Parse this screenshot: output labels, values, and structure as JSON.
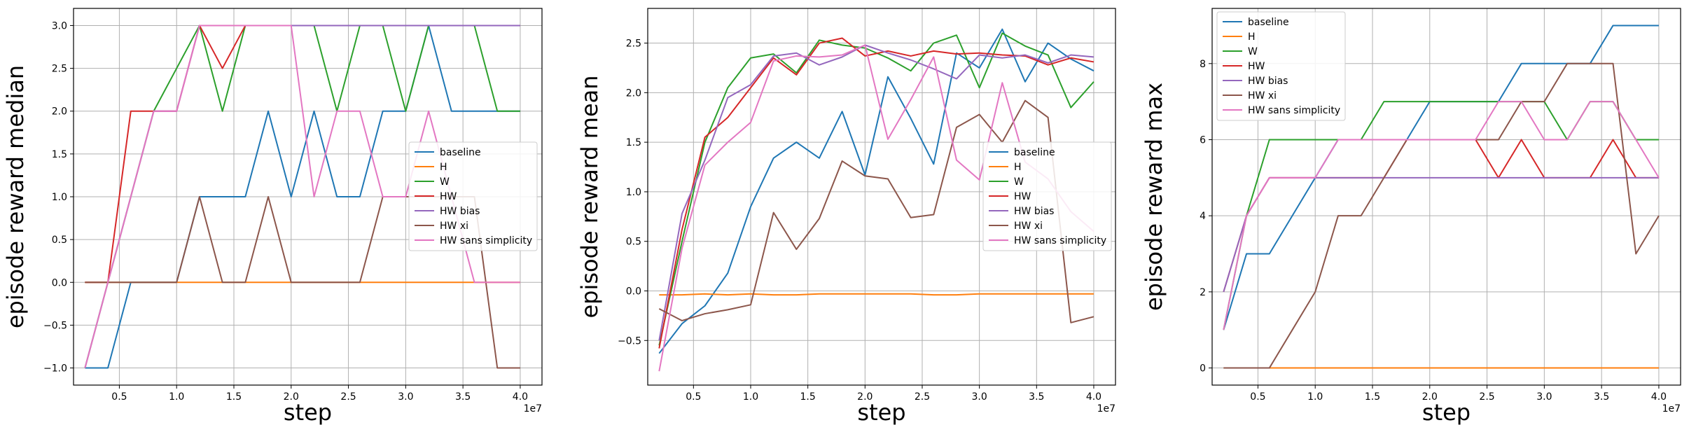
{
  "figure": {
    "background": "#ffffff"
  },
  "chart_data": [
    {
      "type": "line",
      "xlabel": "step",
      "ylabel": "episode reward median",
      "x_offset_text": "1e7",
      "xlim": [
        0.1,
        4.19
      ],
      "ylim": [
        -1.2,
        3.2
      ],
      "xticks": [
        0.5,
        1.0,
        1.5,
        2.0,
        2.5,
        3.0,
        3.5,
        4.0
      ],
      "xtick_labels": [
        "0.5",
        "1.0",
        "1.5",
        "2.0",
        "2.5",
        "3.0",
        "3.5",
        "4.0"
      ],
      "yticks": [
        -1.0,
        -0.5,
        0.0,
        0.5,
        1.0,
        1.5,
        2.0,
        2.5,
        3.0
      ],
      "ytick_labels": [
        "−1.0",
        "−0.5",
        "0.0",
        "0.5",
        "1.0",
        "1.5",
        "2.0",
        "2.5",
        "3.0"
      ],
      "grid": true,
      "legend_position": "center-right",
      "x": [
        0.2,
        0.4,
        0.6,
        0.8,
        1.0,
        1.2,
        1.4,
        1.6,
        1.8,
        2.0,
        2.2,
        2.4,
        2.6,
        2.8,
        3.0,
        3.2,
        3.4,
        3.6,
        3.8,
        4.0
      ],
      "series": [
        {
          "name": "baseline",
          "color": "#1f77b4",
          "values": [
            -1,
            -1,
            0,
            0,
            0,
            1,
            1,
            1,
            2,
            1,
            2,
            1,
            1,
            2,
            2,
            3,
            2,
            2,
            2,
            2
          ]
        },
        {
          "name": "H",
          "color": "#ff7f0e",
          "values": [
            0,
            0,
            0,
            0,
            0,
            0,
            0,
            0,
            0,
            0,
            0,
            0,
            0,
            0,
            0,
            0,
            0,
            0,
            0,
            0
          ]
        },
        {
          "name": "W",
          "color": "#2ca02c",
          "values": [
            -1,
            0,
            1,
            2,
            2.5,
            3,
            2,
            3,
            3,
            3,
            3,
            2,
            3,
            3,
            2,
            3,
            3,
            3,
            2,
            2
          ]
        },
        {
          "name": "HW",
          "color": "#d62728",
          "values": [
            0,
            0,
            2,
            2,
            2,
            3,
            2.5,
            3,
            3,
            3,
            3,
            3,
            3,
            3,
            3,
            3,
            3,
            3,
            3,
            3
          ]
        },
        {
          "name": "HW bias",
          "color": "#9467bd",
          "values": [
            -1,
            0,
            1,
            2,
            2,
            3,
            3,
            3,
            3,
            3,
            3,
            3,
            3,
            3,
            3,
            3,
            3,
            3,
            3,
            3
          ]
        },
        {
          "name": "HW xi",
          "color": "#8c564b",
          "values": [
            0,
            0,
            0,
            0,
            0,
            1,
            0,
            0,
            1,
            0,
            0,
            0,
            0,
            1,
            1,
            1,
            1,
            1,
            -1,
            -1
          ]
        },
        {
          "name": "HW sans simplicity",
          "color": "#e377c2",
          "values": [
            -1,
            0,
            1,
            2,
            2,
            3,
            3,
            3,
            3,
            3,
            1,
            2,
            2,
            1,
            1,
            2,
            1,
            0,
            0,
            0
          ]
        }
      ]
    },
    {
      "type": "line",
      "xlabel": "step",
      "ylabel": "episode reward mean",
      "x_offset_text": "1e7",
      "xlim": [
        0.1,
        4.19
      ],
      "ylim": [
        -0.95,
        2.85
      ],
      "xticks": [
        0.5,
        1.0,
        1.5,
        2.0,
        2.5,
        3.0,
        3.5,
        4.0
      ],
      "xtick_labels": [
        "0.5",
        "1.0",
        "1.5",
        "2.0",
        "2.5",
        "3.0",
        "3.5",
        "4.0"
      ],
      "yticks": [
        -0.5,
        0.0,
        0.5,
        1.0,
        1.5,
        2.0,
        2.5
      ],
      "ytick_labels": [
        "−0.5",
        "0.0",
        "0.5",
        "1.0",
        "1.5",
        "2.0",
        "2.5"
      ],
      "grid": true,
      "legend_position": "center-right",
      "x": [
        0.2,
        0.4,
        0.6,
        0.8,
        1.0,
        1.2,
        1.4,
        1.6,
        1.8,
        2.0,
        2.2,
        2.4,
        2.6,
        2.8,
        3.0,
        3.2,
        3.4,
        3.6,
        3.8,
        4.0
      ],
      "series": [
        {
          "name": "baseline",
          "color": "#1f77b4",
          "values": [
            -0.63,
            -0.33,
            -0.15,
            0.18,
            0.85,
            1.34,
            1.5,
            1.34,
            1.81,
            1.17,
            2.16,
            1.74,
            1.28,
            2.4,
            2.25,
            2.64,
            2.11,
            2.5,
            2.34,
            2.22
          ]
        },
        {
          "name": "H",
          "color": "#ff7f0e",
          "values": [
            -0.04,
            -0.04,
            -0.03,
            -0.04,
            -0.03,
            -0.04,
            -0.04,
            -0.03,
            -0.03,
            -0.03,
            -0.03,
            -0.03,
            -0.04,
            -0.04,
            -0.03,
            -0.03,
            -0.03,
            -0.03,
            -0.03,
            -0.03
          ]
        },
        {
          "name": "W",
          "color": "#2ca02c",
          "values": [
            -0.55,
            0.5,
            1.5,
            2.05,
            2.35,
            2.39,
            2.2,
            2.53,
            2.48,
            2.45,
            2.35,
            2.22,
            2.5,
            2.58,
            2.05,
            2.6,
            2.47,
            2.38,
            1.85,
            2.11
          ]
        },
        {
          "name": "HW",
          "color": "#d62728",
          "values": [
            -0.58,
            0.62,
            1.55,
            1.75,
            2.05,
            2.35,
            2.18,
            2.5,
            2.55,
            2.37,
            2.42,
            2.37,
            2.42,
            2.39,
            2.4,
            2.38,
            2.37,
            2.28,
            2.35,
            2.31
          ]
        },
        {
          "name": "HW bias",
          "color": "#9467bd",
          "values": [
            -0.5,
            0.78,
            1.32,
            1.95,
            2.08,
            2.37,
            2.4,
            2.28,
            2.36,
            2.48,
            2.4,
            2.33,
            2.24,
            2.14,
            2.38,
            2.35,
            2.38,
            2.3,
            2.38,
            2.36
          ]
        },
        {
          "name": "HW xi",
          "color": "#8c564b",
          "values": [
            -0.18,
            -0.3,
            -0.23,
            -0.19,
            -0.14,
            0.79,
            0.42,
            0.73,
            1.31,
            1.16,
            1.13,
            0.74,
            0.77,
            1.65,
            1.78,
            1.5,
            1.92,
            1.75,
            -0.32,
            -0.26
          ]
        },
        {
          "name": "HW sans simplicity",
          "color": "#e377c2",
          "values": [
            -0.81,
            0.43,
            1.27,
            1.5,
            1.7,
            2.32,
            2.37,
            2.36,
            2.38,
            2.48,
            1.53,
            1.93,
            2.36,
            1.32,
            1.12,
            2.1,
            1.3,
            1.13,
            0.8,
            0.6
          ]
        }
      ]
    },
    {
      "type": "line",
      "xlabel": "step",
      "ylabel": "episode reward max",
      "x_offset_text": "1e7",
      "xlim": [
        0.1,
        4.19
      ],
      "ylim": [
        -0.45,
        9.45
      ],
      "xticks": [
        0.5,
        1.0,
        1.5,
        2.0,
        2.5,
        3.0,
        3.5,
        4.0
      ],
      "xtick_labels": [
        "0.5",
        "1.0",
        "1.5",
        "2.0",
        "2.5",
        "3.0",
        "3.5",
        "4.0"
      ],
      "yticks": [
        0,
        2,
        4,
        6,
        8
      ],
      "ytick_labels": [
        "0",
        "2",
        "4",
        "6",
        "8"
      ],
      "grid": true,
      "legend_position": "top-left",
      "x": [
        0.2,
        0.4,
        0.6,
        0.8,
        1.0,
        1.2,
        1.4,
        1.6,
        1.8,
        2.0,
        2.2,
        2.4,
        2.6,
        2.8,
        3.0,
        3.2,
        3.4,
        3.6,
        3.8,
        4.0
      ],
      "series": [
        {
          "name": "baseline",
          "color": "#1f77b4",
          "values": [
            1,
            3,
            3,
            4,
            5,
            6,
            6,
            6,
            6,
            7,
            7,
            7,
            7,
            8,
            8,
            8,
            8,
            9,
            9,
            9
          ]
        },
        {
          "name": "H",
          "color": "#ff7f0e",
          "values": [
            0,
            0,
            0,
            0,
            0,
            0,
            0,
            0,
            0,
            0,
            0,
            0,
            0,
            0,
            0,
            0,
            0,
            0,
            0,
            0
          ]
        },
        {
          "name": "W",
          "color": "#2ca02c",
          "values": [
            1,
            4,
            6,
            6,
            6,
            6,
            6,
            7,
            7,
            7,
            7,
            7,
            7,
            7,
            7,
            6,
            7,
            7,
            6,
            6
          ]
        },
        {
          "name": "HW",
          "color": "#d62728",
          "values": [
            2,
            4,
            5,
            5,
            5,
            5,
            5,
            5,
            6,
            6,
            6,
            6,
            5,
            6,
            5,
            5,
            5,
            6,
            5,
            5
          ]
        },
        {
          "name": "HW bias",
          "color": "#9467bd",
          "values": [
            2,
            4,
            5,
            5,
            5,
            5,
            5,
            5,
            5,
            5,
            5,
            5,
            5,
            5,
            5,
            5,
            5,
            5,
            5,
            5
          ]
        },
        {
          "name": "HW xi",
          "color": "#8c564b",
          "values": [
            0,
            0,
            0,
            1,
            2,
            4,
            4,
            5,
            6,
            6,
            6,
            6,
            6,
            7,
            7,
            8,
            8,
            8,
            3,
            4
          ]
        },
        {
          "name": "HW sans simplicity",
          "color": "#e377c2",
          "values": [
            1,
            4,
            5,
            5,
            5,
            6,
            6,
            6,
            6,
            6,
            6,
            6,
            7,
            7,
            6,
            6,
            7,
            7,
            6,
            5
          ]
        }
      ]
    }
  ]
}
